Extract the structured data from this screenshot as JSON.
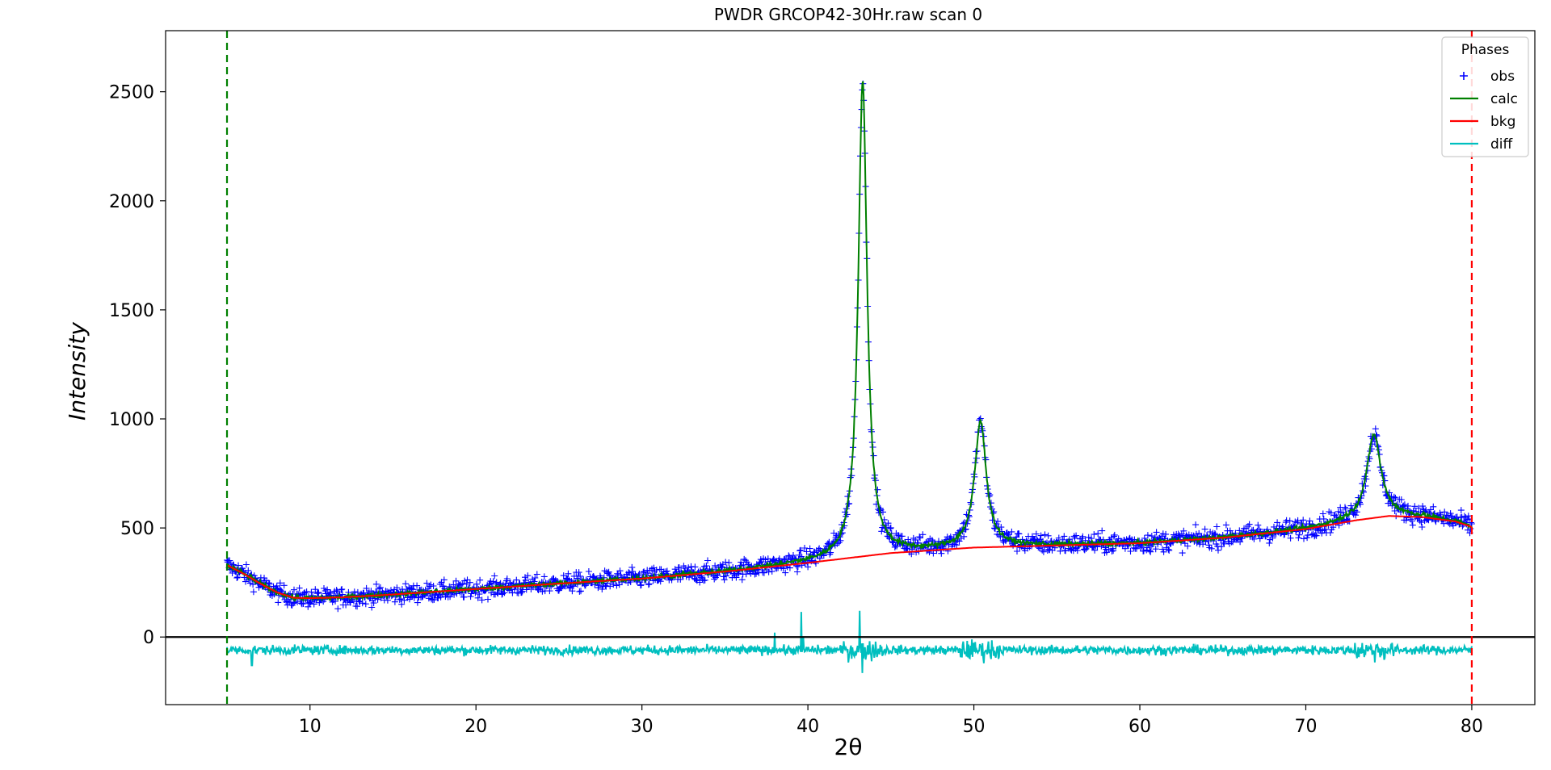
{
  "chart_data": {
    "type": "scatter",
    "title": "PWDR GRCOP42-30Hr.raw scan 0",
    "xlabel": "2θ",
    "ylabel": "Intensity",
    "xlim": [
      1.3,
      83.8
    ],
    "ylim": [
      -310,
      2780
    ],
    "xticks": [
      10,
      20,
      30,
      40,
      50,
      60,
      70,
      80
    ],
    "yticks": [
      0,
      500,
      1000,
      1500,
      2000,
      2500
    ],
    "x_start": 5.0,
    "x_end": 80.0,
    "grid": false,
    "legend": {
      "title": "Phases",
      "position": "top-right",
      "entries": [
        {
          "label": "obs",
          "color": "#0000ff",
          "marker": "plus"
        },
        {
          "label": "calc",
          "color": "#008000",
          "marker": "line"
        },
        {
          "label": "bkg",
          "color": "#ff0000",
          "marker": "line"
        },
        {
          "label": "diff",
          "color": "#00bfbf",
          "marker": "line"
        }
      ]
    },
    "vlines": [
      {
        "x": 5.0,
        "color": "#008000",
        "style": "dashed"
      },
      {
        "x": 80.0,
        "color": "#ff0000",
        "style": "dashed"
      }
    ],
    "hline": {
      "y": 0,
      "color": "#000000"
    },
    "background": {
      "x": [
        5,
        6,
        7,
        8,
        9,
        10,
        12,
        15,
        20,
        25,
        30,
        35,
        40,
        45,
        50,
        55,
        60,
        65,
        70,
        73,
        75,
        77,
        79,
        80
      ],
      "y": [
        330,
        290,
        245,
        205,
        180,
        178,
        182,
        195,
        220,
        245,
        268,
        300,
        340,
        385,
        410,
        420,
        430,
        455,
        495,
        535,
        555,
        550,
        530,
        505
      ]
    },
    "peaks": [
      {
        "center": 43.3,
        "height": 2180,
        "width": 0.32
      },
      {
        "center": 50.4,
        "height": 575,
        "width": 0.42
      },
      {
        "center": 74.1,
        "height": 385,
        "width": 0.5
      }
    ],
    "obs_noise": 25,
    "diff_offset": -60,
    "diff_noise": 15,
    "diff_spikes": [
      {
        "x": 39.6,
        "y": 115
      },
      {
        "x": 39.7,
        "y": 0
      },
      {
        "x": 43.1,
        "y": 120
      },
      {
        "x": 43.3,
        "y": -165
      },
      {
        "x": 43.5,
        "y": -160
      },
      {
        "x": 38.0,
        "y": 20
      },
      {
        "x": 6.5,
        "y": -130
      }
    ],
    "series": [
      {
        "name": "obs",
        "color": "#0000ff"
      },
      {
        "name": "calc",
        "color": "#008000"
      },
      {
        "name": "bkg",
        "color": "#ff0000"
      },
      {
        "name": "diff",
        "color": "#00bfbf"
      }
    ]
  }
}
